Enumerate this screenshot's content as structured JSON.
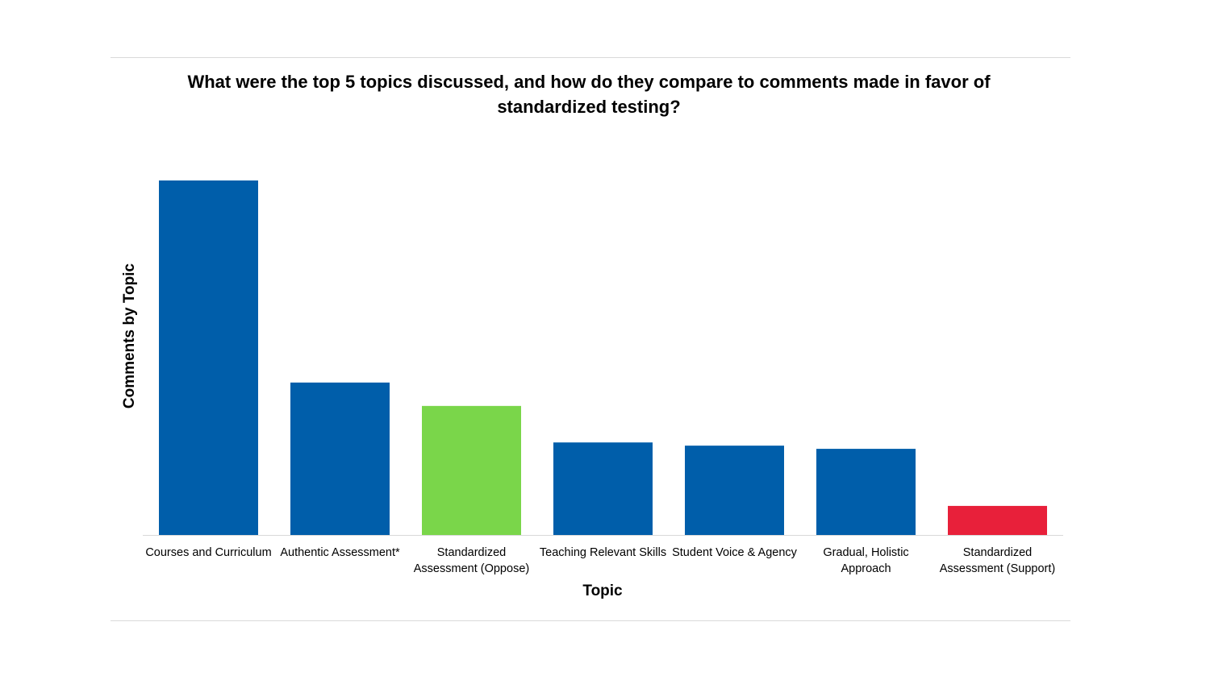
{
  "chart_data": {
    "type": "bar",
    "title": "What were the top 5 topics discussed, and how do they compare to comments made in favor of standardized testing?",
    "xlabel": "Topic",
    "ylabel": "Comments by Topic",
    "categories": [
      "Courses and Curriculum",
      "Authentic Assessment*",
      "Standardized Assessment (Oppose)",
      "Teaching Relevant Skills",
      "Student Voice & Agency",
      "Gradual, Holistic Approach",
      "Standardized Assessment (Support)"
    ],
    "values_note_relative": true,
    "values": [
      1.0,
      0.43,
      0.364,
      0.261,
      0.252,
      0.243,
      0.082
    ],
    "ylim": [
      0,
      1.0
    ],
    "grid": false,
    "legend": "none",
    "colors": [
      "#005EAA",
      "#005EAA",
      "#7AD64A",
      "#005EAA",
      "#005EAA",
      "#005EAA",
      "#E8203A"
    ]
  }
}
